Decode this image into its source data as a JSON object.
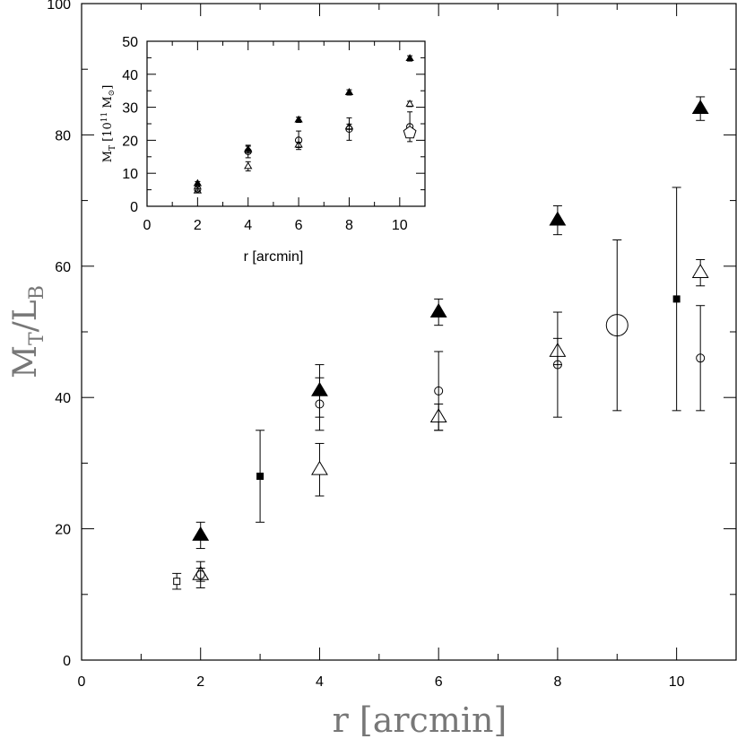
{
  "chart_data": [
    {
      "type": "scatter",
      "title": "",
      "xlabel": "r [arcmin]",
      "ylabel": {
        "main": "M",
        "sub1": "T",
        "sep": "/L",
        "sub2": "B"
      },
      "xlim": [
        0,
        11
      ],
      "ylim": [
        0,
        100
      ],
      "x_ticks": [
        0,
        2,
        4,
        6,
        8,
        10
      ],
      "y_ticks": [
        0,
        20,
        40,
        60,
        80,
        100
      ],
      "grid": false,
      "legend": "none",
      "series": [
        {
          "marker": "filled-triangle",
          "size": "large",
          "points": [
            {
              "x": 2.0,
              "y": 19,
              "err": 2
            },
            {
              "x": 4.0,
              "y": 41,
              "err": 4
            },
            {
              "x": 6.0,
              "y": 53,
              "err": 2
            },
            {
              "x": 8.0,
              "y": 67,
              "err": 2.2
            },
            {
              "x": 10.4,
              "y": 84,
              "err": 1.8
            }
          ]
        },
        {
          "marker": "open-triangle",
          "size": "large",
          "points": [
            {
              "x": 2.0,
              "y": 13,
              "err": 2
            },
            {
              "x": 4.0,
              "y": 29,
              "err": 4
            },
            {
              "x": 6.0,
              "y": 37,
              "err": 2
            },
            {
              "x": 8.0,
              "y": 47,
              "err": 2
            },
            {
              "x": 10.4,
              "y": 59,
              "err": 2
            }
          ]
        },
        {
          "marker": "open-circle",
          "size": "small",
          "points": [
            {
              "x": 2.0,
              "y": 13,
              "err": 1
            },
            {
              "x": 4.0,
              "y": 39,
              "err": 4
            },
            {
              "x": 6.0,
              "y": 41,
              "err": 6
            },
            {
              "x": 8.0,
              "y": 45,
              "err": 8
            },
            {
              "x": 10.4,
              "y": 46,
              "err": 8
            }
          ]
        },
        {
          "marker": "filled-square",
          "size": "small",
          "points": [
            {
              "x": 3.0,
              "y": 28,
              "err": 7
            },
            {
              "x": 10.0,
              "y": 55,
              "err": 17
            }
          ]
        },
        {
          "marker": "open-square",
          "size": "small",
          "points": [
            {
              "x": 1.6,
              "y": 12,
              "err": 1.2
            }
          ]
        },
        {
          "marker": "open-circle",
          "size": "large",
          "points": [
            {
              "x": 9.0,
              "y": 51,
              "err": 13
            }
          ]
        }
      ]
    },
    {
      "type": "scatter",
      "title": "",
      "xlabel": "r [arcmin]",
      "ylabel": {
        "main": "M",
        "sub": "T",
        "rest": " [10",
        "sup": "11",
        "tail": " M",
        "sun": "⊙",
        "close": "]"
      },
      "xlim": [
        0,
        11
      ],
      "ylim": [
        0,
        50
      ],
      "x_ticks": [
        0,
        2,
        4,
        6,
        8,
        10
      ],
      "y_ticks": [
        0,
        10,
        20,
        30,
        40,
        50
      ],
      "grid": false,
      "legend": "none",
      "series": [
        {
          "marker": "filled-triangle",
          "size": "small",
          "points": [
            {
              "x": 2.0,
              "y": 6.9,
              "err": 0.6
            },
            {
              "x": 4.0,
              "y": 17.2,
              "err": 1.0
            },
            {
              "x": 6.0,
              "y": 26.2,
              "err": 0.8
            },
            {
              "x": 8.0,
              "y": 34.5,
              "err": 0.8
            },
            {
              "x": 10.4,
              "y": 44.8,
              "err": 0.8
            }
          ]
        },
        {
          "marker": "open-triangle",
          "size": "small",
          "points": [
            {
              "x": 2.0,
              "y": 4.7,
              "err": 0.6
            },
            {
              "x": 4.0,
              "y": 12.1,
              "err": 1.4
            },
            {
              "x": 6.0,
              "y": 18.6,
              "err": 0.8
            },
            {
              "x": 8.0,
              "y": 24.1,
              "err": 0.8
            },
            {
              "x": 10.4,
              "y": 31.0,
              "err": 0.8
            }
          ]
        },
        {
          "marker": "open-circle",
          "size": "small",
          "points": [
            {
              "x": 2.0,
              "y": 5.2,
              "err": 0.6
            },
            {
              "x": 4.0,
              "y": 16.6,
              "err": 1.9
            },
            {
              "x": 6.0,
              "y": 20.0,
              "err": 2.8
            },
            {
              "x": 8.0,
              "y": 23.4,
              "err": 3.4
            },
            {
              "x": 10.4,
              "y": 24.1,
              "err": 4.5
            }
          ]
        },
        {
          "marker": "open-pentagon",
          "size": "large",
          "points": [
            {
              "x": 10.4,
              "y": 22.3,
              "err": 0
            }
          ]
        }
      ]
    }
  ]
}
